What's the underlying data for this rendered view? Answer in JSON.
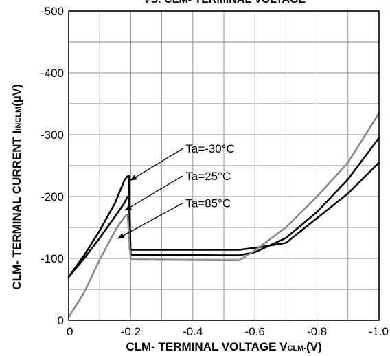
{
  "chart_data": {
    "type": "line",
    "title": "VS. CLM- TERMINAL VOLTAGE",
    "xlabel": "CLM- TERMINAL VOLTAGE V",
    "xlabel_sub": "CLM-",
    "xlabel_unit": "(V)",
    "ylabel": "CLM- TERMINAL CURRENT I",
    "ylabel_sub": "INCLM",
    "ylabel_unit": "(µV)",
    "xlim": [
      0,
      -1.0
    ],
    "ylim": [
      0,
      -500
    ],
    "x_ticks": [
      0,
      -0.2,
      -0.4,
      -0.6,
      -0.8,
      -1.0
    ],
    "x_tick_labels": [
      "0",
      "-0.2",
      "-0.4",
      "-0.6",
      "-0.8",
      "-1.0"
    ],
    "y_ticks": [
      0,
      -100,
      -200,
      -300,
      -400,
      -500
    ],
    "y_tick_labels": [
      "0",
      "-100",
      "-200",
      "-300",
      "-400",
      "-500"
    ],
    "grid": true,
    "series": [
      {
        "name": "Ta=-30°C",
        "color": "#000000",
        "x": [
          0,
          -0.05,
          -0.1,
          -0.15,
          -0.18,
          -0.19,
          -0.195,
          -0.197,
          -0.2,
          -0.5,
          -0.55,
          -0.6,
          -0.7,
          -0.8,
          -0.9,
          -1.0
        ],
        "y": [
          -70,
          -105,
          -145,
          -190,
          -227,
          -233,
          -233,
          -115,
          -114,
          -114,
          -114,
          -117,
          -125,
          -165,
          -205,
          -255
        ]
      },
      {
        "name": "Ta=25°C",
        "color": "#000000",
        "x": [
          0,
          -0.05,
          -0.1,
          -0.15,
          -0.18,
          -0.19,
          -0.195,
          -0.2,
          -0.5,
          -0.55,
          -0.6,
          -0.7,
          -0.8,
          -0.9,
          -1.0
        ],
        "y": [
          -70,
          -100,
          -133,
          -168,
          -190,
          -200,
          -200,
          -106,
          -105,
          -105,
          -110,
          -133,
          -175,
          -228,
          -295
        ]
      },
      {
        "name": "Ta=85°C",
        "color": "#888888",
        "x": [
          0,
          -0.05,
          -0.1,
          -0.15,
          -0.17,
          -0.185,
          -0.19,
          -0.2,
          -0.5,
          -0.55,
          -0.6,
          -0.7,
          -0.8,
          -0.9,
          -1.0
        ],
        "y": [
          -5,
          -45,
          -98,
          -145,
          -160,
          -170,
          -170,
          -98,
          -97,
          -97,
          -113,
          -150,
          -200,
          -255,
          -335
        ]
      }
    ],
    "annotations": [
      {
        "text": "Ta=-30°C",
        "series": 0
      },
      {
        "text": "Ta=25°C",
        "series": 1
      },
      {
        "text": "Ta=85°C",
        "series": 2
      }
    ]
  }
}
